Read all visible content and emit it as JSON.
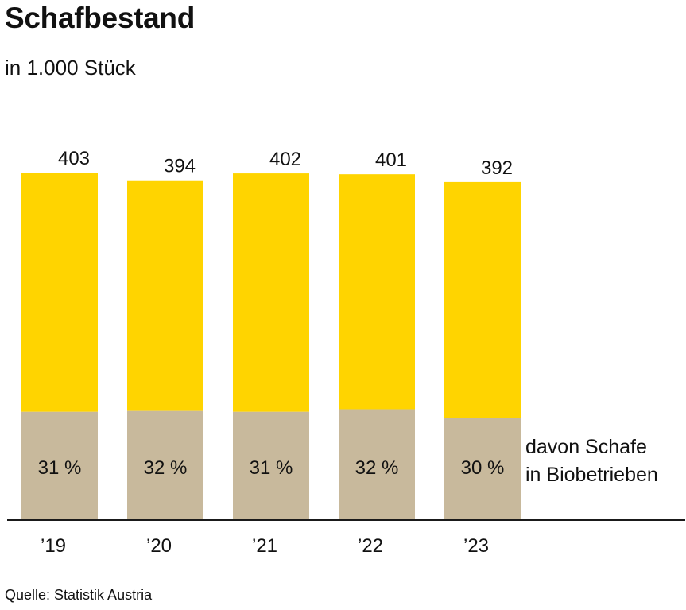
{
  "title": "Schafbestand",
  "subtitle": "in 1.000 Stück",
  "source": "Quelle: Statistik Austria",
  "chart_data": {
    "type": "bar",
    "stacked": true,
    "categories": [
      "’19",
      "’20",
      "’21",
      "’22",
      "’23"
    ],
    "totals": [
      403,
      394,
      402,
      401,
      392
    ],
    "organic_share_labels": [
      "31 %",
      "32 %",
      "31 %",
      "32 %",
      "30 %"
    ],
    "organic_share_percent": [
      31,
      32,
      31,
      32,
      30
    ],
    "series": [
      {
        "name": "davon Schafe in Biobetrieben",
        "values": [
          125,
          126,
          125,
          128,
          118
        ],
        "color": "#c8b99c"
      },
      {
        "values": [
          278,
          268,
          277,
          273,
          274
        ],
        "color": "#ffd400"
      }
    ],
    "annotation_lines": [
      "davon Schafe",
      "in Biobetrieben"
    ],
    "ylim": [
      0,
      403
    ],
    "grid": false,
    "axis_color": "#1a1a1a"
  }
}
